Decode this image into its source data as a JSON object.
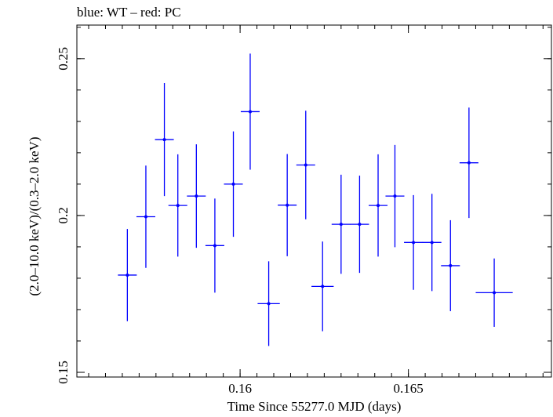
{
  "chart_data": {
    "type": "scatter",
    "title": "blue: WT – red: PC",
    "xlabel": "Time Since 55277.0 MJD (days)",
    "ylabel": "(2.0–10.0 keV)/(0.3–2.0 keV)",
    "xlim": [
      0.15515,
      0.16925
    ],
    "ylim": [
      0.1485,
      0.2607
    ],
    "xticks": [
      0.16,
      0.165
    ],
    "xtick_labels": [
      "0.16",
      "0.165"
    ],
    "yticks": [
      0.15,
      0.2,
      0.25
    ],
    "ytick_labels": [
      "0.15",
      "0.2",
      "0.25"
    ],
    "grid": false,
    "series": [
      {
        "color": "#0000ff",
        "points": [
          {
            "x": 0.15665,
            "xerr": 0.00028,
            "y": 0.181,
            "yerr": 0.0147
          },
          {
            "x": 0.1572,
            "xerr": 0.00028,
            "y": 0.1996,
            "yerr": 0.0163
          },
          {
            "x": 0.15775,
            "xerr": 0.00028,
            "y": 0.2242,
            "yerr": 0.018
          },
          {
            "x": 0.15815,
            "xerr": 0.00028,
            "y": 0.2032,
            "yerr": 0.0163
          },
          {
            "x": 0.1587,
            "xerr": 0.00028,
            "y": 0.2062,
            "yerr": 0.0165
          },
          {
            "x": 0.15925,
            "xerr": 0.00028,
            "y": 0.1904,
            "yerr": 0.015
          },
          {
            "x": 0.1598,
            "xerr": 0.00028,
            "y": 0.21,
            "yerr": 0.0168
          },
          {
            "x": 0.1603,
            "xerr": 0.00028,
            "y": 0.2331,
            "yerr": 0.0185
          },
          {
            "x": 0.16085,
            "xerr": 0.00033,
            "y": 0.1719,
            "yerr": 0.0135
          },
          {
            "x": 0.1614,
            "xerr": 0.00028,
            "y": 0.2033,
            "yerr": 0.0163
          },
          {
            "x": 0.16195,
            "xerr": 0.00028,
            "y": 0.2161,
            "yerr": 0.0173
          },
          {
            "x": 0.16245,
            "xerr": 0.00033,
            "y": 0.1774,
            "yerr": 0.0143
          },
          {
            "x": 0.163,
            "xerr": 0.00028,
            "y": 0.1972,
            "yerr": 0.0158
          },
          {
            "x": 0.16355,
            "xerr": 0.00028,
            "y": 0.1972,
            "yerr": 0.0155
          },
          {
            "x": 0.1641,
            "xerr": 0.00028,
            "y": 0.2032,
            "yerr": 0.0163
          },
          {
            "x": 0.1646,
            "xerr": 0.00028,
            "y": 0.2062,
            "yerr": 0.0163
          },
          {
            "x": 0.16515,
            "xerr": 0.00028,
            "y": 0.1914,
            "yerr": 0.0151
          },
          {
            "x": 0.1657,
            "xerr": 0.00028,
            "y": 0.1914,
            "yerr": 0.0155
          },
          {
            "x": 0.16625,
            "xerr": 0.00028,
            "y": 0.184,
            "yerr": 0.0145
          },
          {
            "x": 0.1668,
            "xerr": 0.00028,
            "y": 0.2168,
            "yerr": 0.0176
          },
          {
            "x": 0.16755,
            "xerr": 0.00055,
            "y": 0.1754,
            "yerr": 0.0109
          }
        ]
      }
    ]
  }
}
